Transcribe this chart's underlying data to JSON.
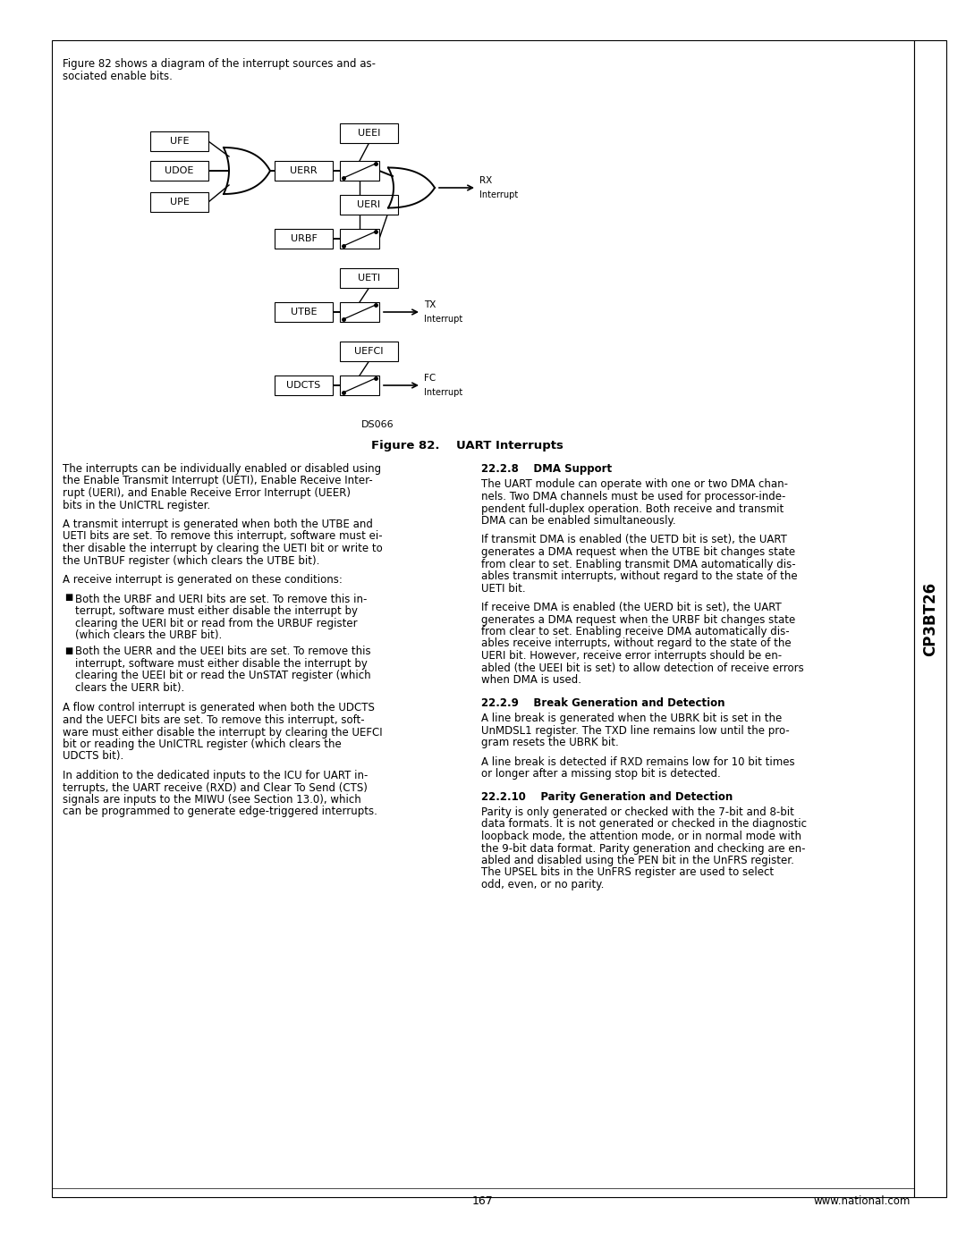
{
  "page_bg": "#ffffff",
  "border_color": "#000000",
  "sidebar_text": "CP3BT26",
  "page_number": "167",
  "website": "www.national.com",
  "figure_caption": "Figure 82.    UART Interrupts",
  "figure_note": "DS066",
  "intro_line1": "Figure 82 shows a diagram of the interrupt sources and as-",
  "intro_line2": "sociated enable bits.",
  "left_col_paragraphs": [
    "The interrupts can be individually enabled or disabled using\nthe Enable Transmit Interrupt (UETI), Enable Receive Inter-\nrupt (UERI), and Enable Receive Error Interrupt (UEER)\nbits in the UnICTRL register.",
    "A transmit interrupt is generated when both the UTBE and\nUETI bits are set. To remove this interrupt, software must ei-\nther disable the interrupt by clearing the UETI bit or write to\nthe UnTBUF register (which clears the UTBE bit).",
    "A receive interrupt is generated on these conditions:"
  ],
  "bullets": [
    "Both the URBF and UERI bits are set. To remove this in-\nterrupt, software must either disable the interrupt by\nclearing the UERI bit or read from the URBUF register\n(which clears the URBF bit).",
    "Both the UERR and the UEEI bits are set. To remove this\ninterrupt, software must either disable the interrupt by\nclearing the UEEI bit or read the UnSTAT register (which\nclears the UERR bit)."
  ],
  "left_col_bottom_paragraphs": [
    "A flow control interrupt is generated when both the UDCTS\nand the UEFCI bits are set. To remove this interrupt, soft-\nware must either disable the interrupt by clearing the UEFCI\nbit or reading the UnICTRL register (which clears the\nUDCTS bit).",
    "In addition to the dedicated inputs to the ICU for UART in-\nterrupts, the UART receive (RXD) and Clear To Send (CTS)\nsignals are inputs to the MIWU (see Section 13.0), which\ncan be programmed to generate edge-triggered interrupts."
  ],
  "section_228_heading": "22.2.8    DMA Support",
  "section_228_paragraphs": [
    "The UART module can operate with one or two DMA chan-\nnels. Two DMA channels must be used for processor-inde-\npendent full-duplex operation. Both receive and transmit\nDMA can be enabled simultaneously.",
    "If transmit DMA is enabled (the UETD bit is set), the UART\ngenerates a DMA request when the UTBE bit changes state\nfrom clear to set. Enabling transmit DMA automatically dis-\nables transmit interrupts, without regard to the state of the\nUETI bit.",
    "If receive DMA is enabled (the UERD bit is set), the UART\ngenerates a DMA request when the URBF bit changes state\nfrom clear to set. Enabling receive DMA automatically dis-\nables receive interrupts, without regard to the state of the\nUERI bit. However, receive error interrupts should be en-\nabled (the UEEI bit is set) to allow detection of receive errors\nwhen DMA is used."
  ],
  "section_229_heading": "22.2.9    Break Generation and Detection",
  "section_229_paragraphs": [
    "A line break is generated when the UBRK bit is set in the\nUnMDSL1 register. The TXD line remains low until the pro-\ngram resets the UBRK bit.",
    "A line break is detected if RXD remains low for 10 bit times\nor longer after a missing stop bit is detected."
  ],
  "section_2210_heading": "22.2.10    Parity Generation and Detection",
  "section_2210_paragraphs": [
    "Parity is only generated or checked with the 7-bit and 8-bit\ndata formats. It is not generated or checked in the diagnostic\nloopback mode, the attention mode, or in normal mode with\nthe 9-bit data format. Parity generation and checking are en-\nabled and disabled using the PEN bit in the UnFRS register.\nThe UPSEL bits in the UnFRS register are used to select\nodd, even, or no parity."
  ]
}
